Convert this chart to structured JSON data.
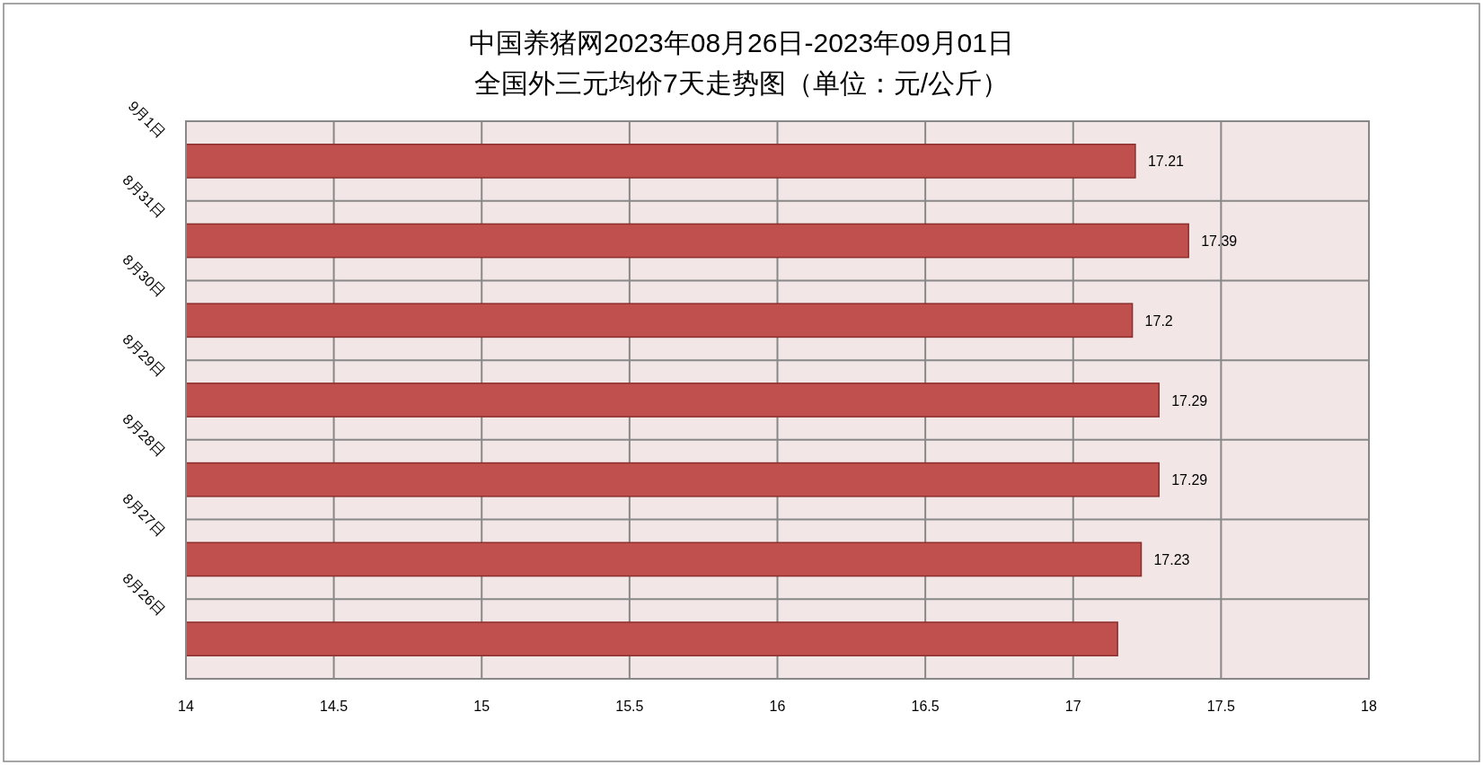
{
  "chart_data": {
    "type": "bar",
    "orientation": "horizontal",
    "title": "中国养猪网2023年08月26日-2023年09月01日",
    "subtitle": "全国外三元均价7天走势图（单位：元/公斤）",
    "categories": [
      "9月1日",
      "8月31日",
      "8月30日",
      "8月29日",
      "8月28日",
      "8月27日",
      "8月26日"
    ],
    "values": [
      17.21,
      17.39,
      17.2,
      17.29,
      17.29,
      17.23,
      17.15
    ],
    "value_labels": [
      "17.21",
      "17.39",
      "17.2",
      "17.29",
      "17.29",
      "17.23",
      null
    ],
    "color": "#c0504d",
    "xlim": [
      14,
      18
    ],
    "xticks": [
      14,
      14.5,
      15,
      15.5,
      16,
      16.5,
      17,
      17.5,
      18
    ],
    "grid": true
  }
}
